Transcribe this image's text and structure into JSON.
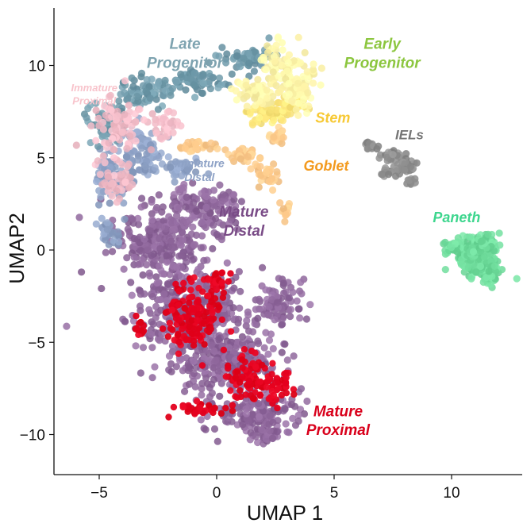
{
  "chart_data": {
    "type": "scatter",
    "title": "",
    "xlabel": "UMAP 1",
    "ylabel": "UMAP2",
    "xlim": [
      -6.8,
      12.9
    ],
    "ylim": [
      -12.2,
      13.2
    ],
    "xticks": [
      -5,
      0,
      5,
      10
    ],
    "yticks": [
      -10,
      -5,
      0,
      5,
      10
    ],
    "xtick_labels": [
      "−5",
      "0",
      "5",
      "10"
    ],
    "ytick_labels": [
      "−10",
      "−5",
      "0",
      "5",
      "10"
    ],
    "grid": false,
    "legend": "none",
    "clusters": [
      {
        "name": "Late Progenitor",
        "label_lines": [
          "Late",
          "Progenitor"
        ],
        "color": "#6f9aaa",
        "label_color": "#7ea3b0",
        "label_at": [
          -3.0,
          10.9
        ],
        "label_size": 19,
        "points_approx": 260,
        "region": [
          [
            -4.7,
            7.0,
            0.8,
            0.9
          ],
          [
            -3.0,
            8.5,
            1.0,
            0.8
          ],
          [
            -1.0,
            9.2,
            1.2,
            0.6
          ],
          [
            1.5,
            10.4,
            1.1,
            0.6
          ]
        ]
      },
      {
        "name": "Early Progenitor",
        "label_lines": [
          "Early",
          "Progenitor"
        ],
        "color": "#fff4a8",
        "label_color": "#8cc63f",
        "label_at": [
          5.4,
          10.9
        ],
        "label_size": 19,
        "points_approx": 200,
        "region": [
          [
            2.8,
            9.6,
            1.0,
            1.3
          ],
          [
            1.6,
            8.5,
            0.9,
            0.7
          ],
          [
            3.6,
            8.8,
            0.7,
            1.0
          ]
        ]
      },
      {
        "name": "Stem",
        "label_lines": [
          "Stem"
        ],
        "color": "#fde67a",
        "label_color": "#f7c935",
        "label_at": [
          4.2,
          6.9
        ],
        "label_size": 18,
        "points_approx": 110,
        "region": [
          [
            2.3,
            7.4,
            0.8,
            0.6
          ],
          [
            3.3,
            8.1,
            0.5,
            0.6
          ]
        ]
      },
      {
        "name": "Goblet",
        "label_lines": [
          "Goblet"
        ],
        "color": "#fdc98a",
        "label_color": "#f39a1e",
        "label_at": [
          3.7,
          4.3
        ],
        "label_size": 18,
        "points_approx": 130,
        "region": [
          [
            -0.8,
            5.6,
            0.7,
            0.35
          ],
          [
            1.3,
            5.2,
            0.7,
            0.4
          ],
          [
            2.1,
            4.1,
            0.4,
            0.6
          ],
          [
            2.6,
            6.2,
            0.3,
            0.5
          ],
          [
            2.9,
            2.1,
            0.2,
            0.5
          ]
        ]
      },
      {
        "name": "Immature Proximal",
        "label_lines": [
          "Immature",
          "Proximal"
        ],
        "color": "#f3bcc8",
        "label_color": "#f8c4cc",
        "label_at": [
          -6.2,
          8.6
        ],
        "label_size": 13,
        "points_approx": 170,
        "region": [
          [
            -4.1,
            6.8,
            1.0,
            1.2
          ],
          [
            -4.3,
            3.8,
            0.7,
            1.0
          ],
          [
            -2.2,
            6.7,
            0.6,
            0.8
          ]
        ]
      },
      {
        "name": "Immature Distal",
        "label_lines": [
          "Immature",
          "Distal"
        ],
        "color": "#8ea2c6",
        "label_color": "#8ea2c6",
        "label_at": [
          -1.8,
          4.5
        ],
        "label_size": 14,
        "points_approx": 230,
        "region": [
          [
            -4.4,
            4.0,
            0.7,
            1.4
          ],
          [
            -3.1,
            5.2,
            0.8,
            1.4
          ],
          [
            -1.4,
            4.4,
            0.7,
            0.6
          ],
          [
            -4.6,
            0.9,
            0.5,
            0.8
          ]
        ]
      },
      {
        "name": "Mature Distal",
        "label_lines": [
          "Mature",
          "Distal"
        ],
        "color": "#8e669b",
        "label_color": "#7a4c87",
        "label_at": [
          0.1,
          1.8
        ],
        "label_size": 19,
        "points_approx": 1300,
        "region": [
          [
            -2.4,
            0.5,
            1.8,
            2.0
          ],
          [
            -1.3,
            -3.2,
            2.3,
            2.0
          ],
          [
            0.4,
            -6.0,
            2.1,
            1.6
          ],
          [
            1.8,
            -8.8,
            1.7,
            1.2
          ],
          [
            -0.4,
            2.3,
            1.4,
            1.0
          ],
          [
            2.6,
            -3.0,
            0.8,
            1.3
          ],
          [
            2.2,
            -10.0,
            0.8,
            0.4
          ]
        ]
      },
      {
        "name": "Mature Proximal",
        "label_lines": [
          "Mature",
          "Proximal"
        ],
        "color": "#e4001e",
        "label_color": "#d9001b",
        "label_at": [
          3.8,
          -9.0
        ],
        "label_size": 19,
        "points_approx": 330,
        "region": [
          [
            2.3,
            -7.5,
            0.9,
            0.8
          ],
          [
            1.3,
            -6.8,
            0.9,
            1.0
          ],
          [
            -0.5,
            -8.6,
            1.2,
            0.4
          ],
          [
            -1.0,
            -3.5,
            1.0,
            2.0
          ],
          [
            -3.3,
            -4.3,
            0.25,
            0.7
          ],
          [
            0.0,
            -1.6,
            0.5,
            0.6
          ]
        ]
      },
      {
        "name": "IELs",
        "label_lines": [
          "IELs"
        ],
        "color": "#8c8c8c",
        "label_color": "#767676",
        "label_at": [
          7.6,
          6.0
        ],
        "label_size": 17,
        "points_approx": 90,
        "region": [
          [
            6.6,
            5.7,
            0.3,
            0.25
          ],
          [
            7.4,
            5.1,
            0.4,
            0.3
          ],
          [
            8.0,
            4.5,
            0.4,
            0.35
          ],
          [
            8.3,
            3.7,
            0.2,
            0.25
          ],
          [
            7.3,
            4.2,
            0.3,
            0.2
          ]
        ]
      },
      {
        "name": "Paneth",
        "label_lines": [
          "Paneth"
        ],
        "color": "#6fdc9c",
        "label_color": "#3ed68e",
        "label_at": [
          9.2,
          1.5
        ],
        "label_size": 18,
        "points_approx": 300,
        "region": [
          [
            10.8,
            -0.3,
            0.8,
            0.7
          ],
          [
            11.6,
            -1.1,
            0.5,
            0.9
          ],
          [
            11.2,
            0.3,
            0.8,
            0.5
          ],
          [
            10.0,
            0.2,
            0.4,
            0.25
          ]
        ]
      }
    ]
  }
}
